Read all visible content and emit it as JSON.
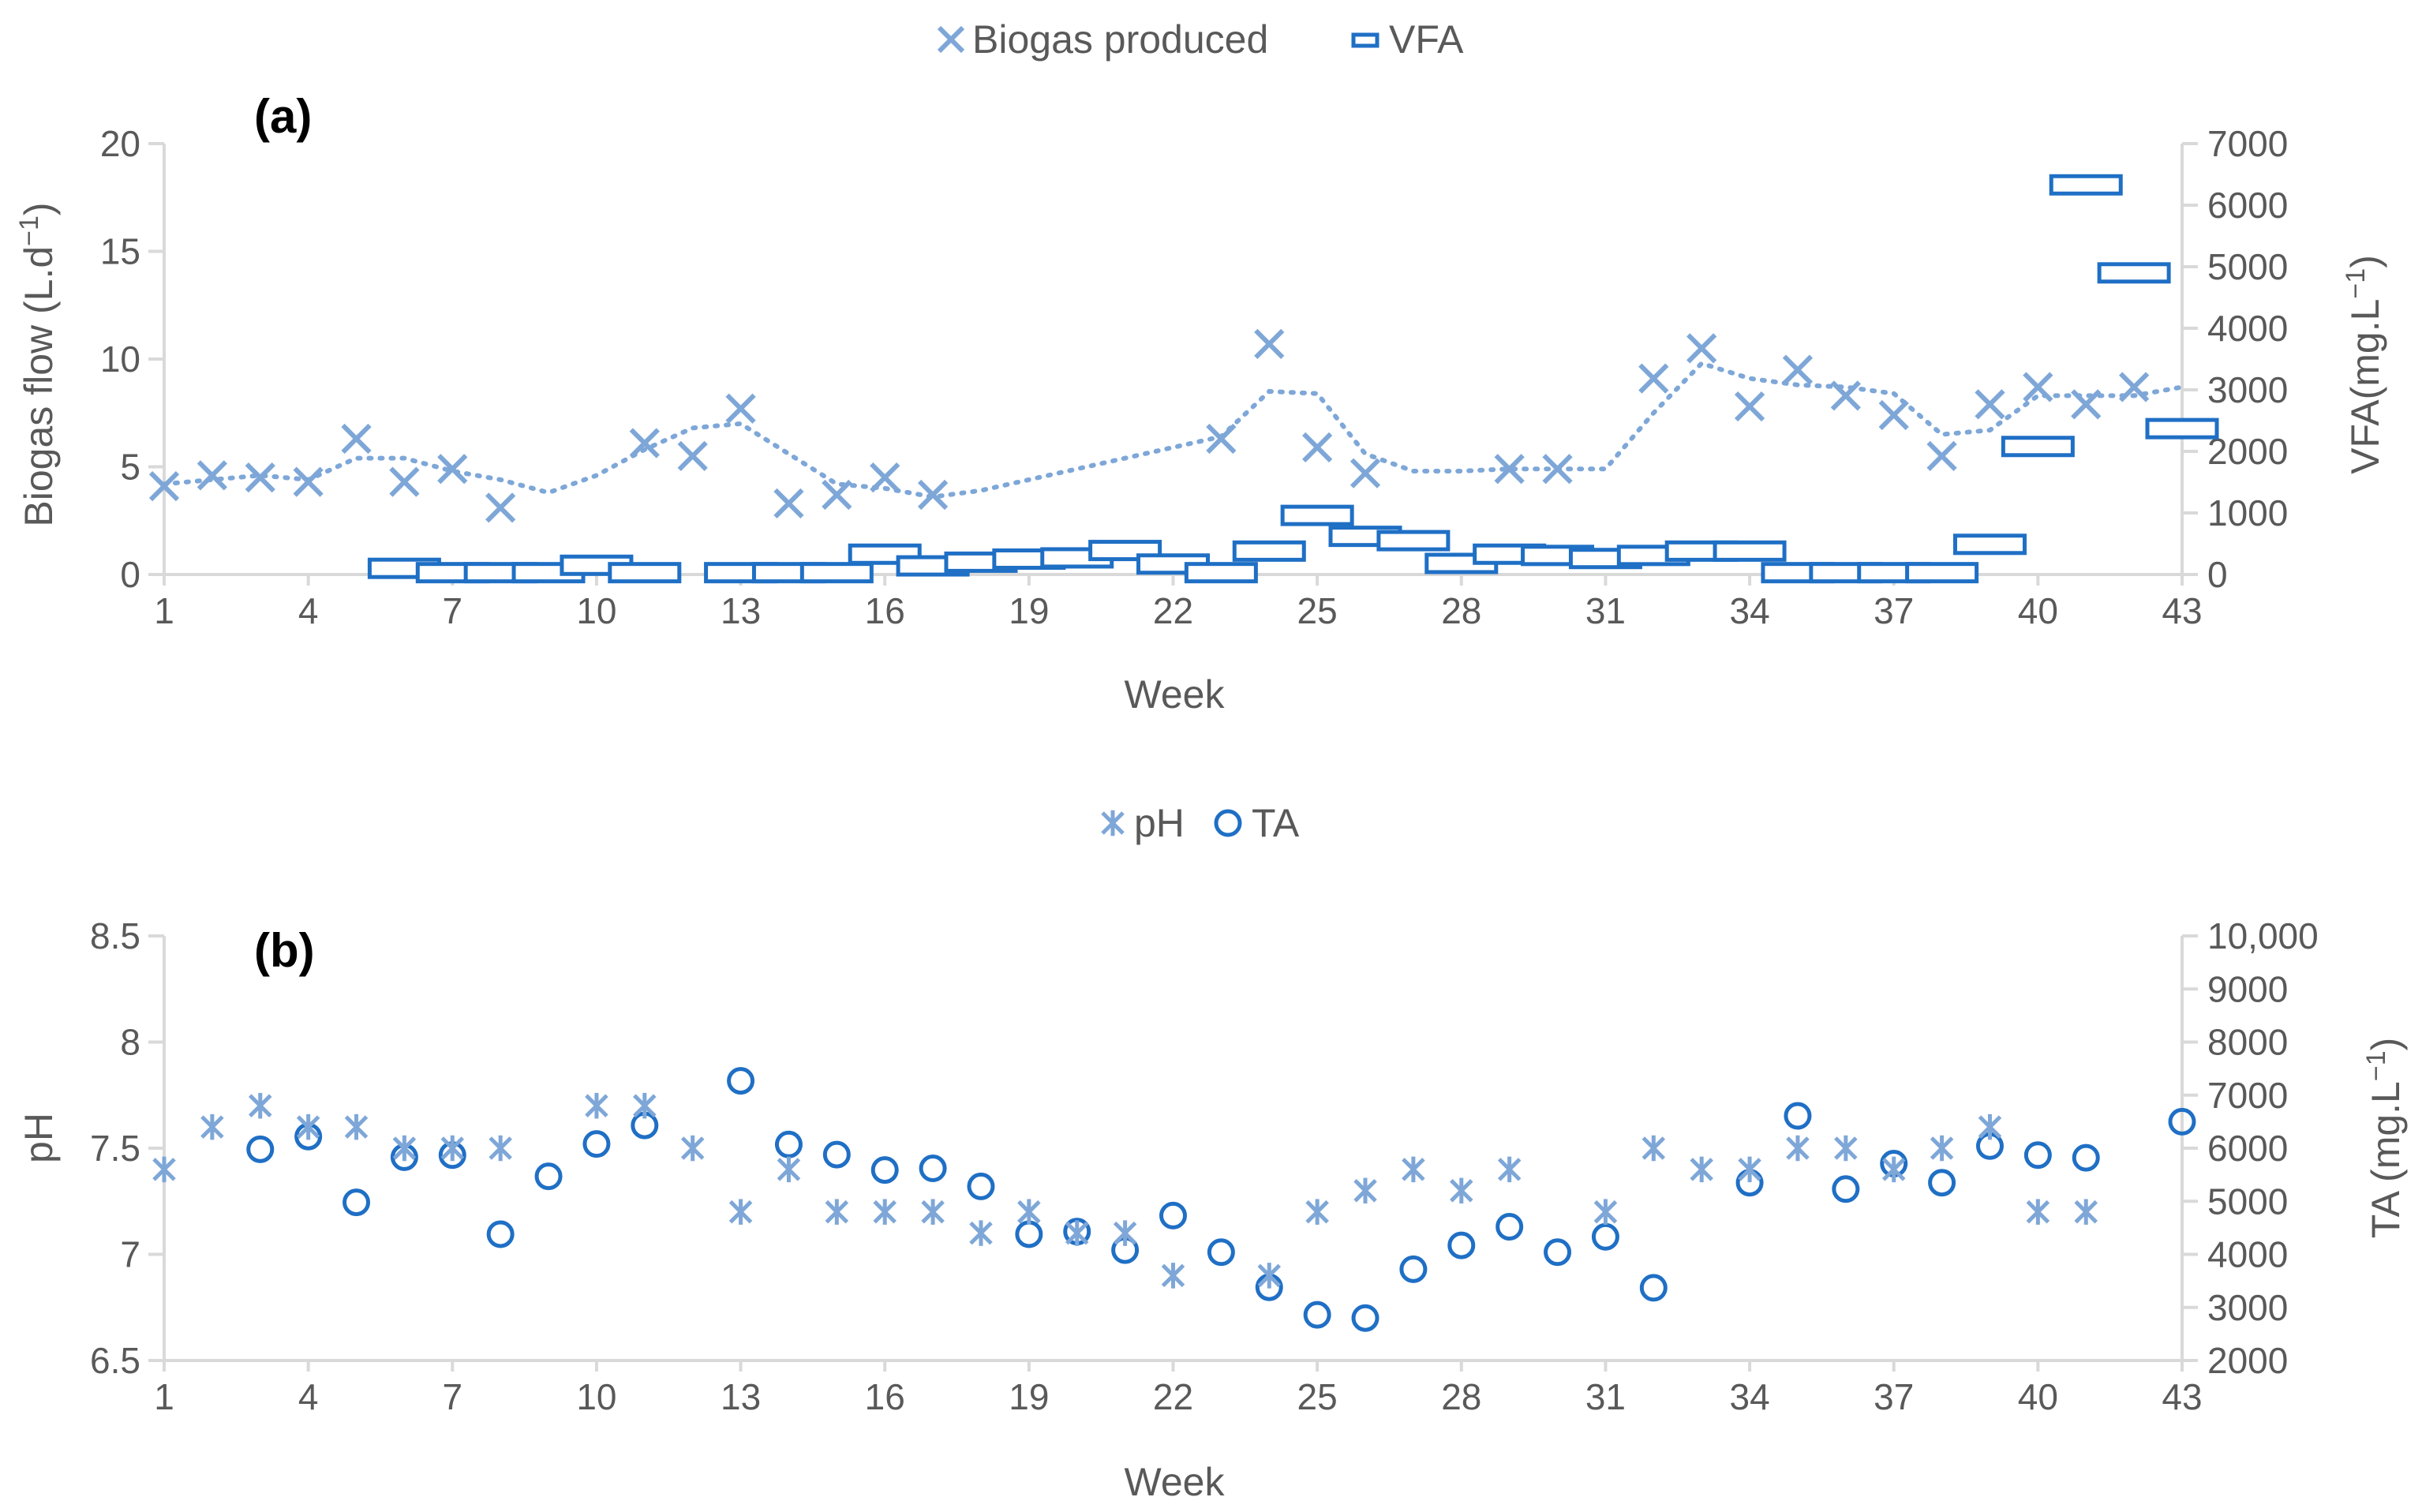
{
  "colors": {
    "marker": "#7EA7D8",
    "accent": "#1F6FC5",
    "axis": "#D9D9D9",
    "text": "#595959"
  },
  "chart_data": [
    {
      "type": "scatter",
      "panel_label": "(a)",
      "xlabel": "Week",
      "ylabel_left_main": "Biogas flow (L.d",
      "ylabel_left_sup": "−1",
      "ylabel_left_end": ")",
      "ylabel_right_main": "VFA(mg.L",
      "ylabel_right_sup": "−1",
      "ylabel_right_end": ")",
      "xlim": [
        1,
        43
      ],
      "ylim_left": [
        0,
        20
      ],
      "ylim_right": [
        0,
        7000
      ],
      "xticks": [
        1,
        4,
        7,
        10,
        13,
        16,
        19,
        22,
        25,
        28,
        31,
        34,
        37,
        40,
        43
      ],
      "yticks_left": [
        0,
        5,
        10,
        15,
        20
      ],
      "yticks_right": [
        0,
        1000,
        2000,
        3000,
        4000,
        5000,
        6000,
        7000
      ],
      "legend": [
        {
          "name": "Biogas produced",
          "icon": "x-marker-icon"
        },
        {
          "name": "VFA",
          "icon": "dash-marker-icon"
        }
      ],
      "series": [
        {
          "name": "Biogas produced",
          "axis": "left",
          "marker": "x",
          "x": [
            1,
            2,
            3,
            4,
            5,
            6,
            7,
            8,
            11,
            12,
            13,
            14,
            15,
            16,
            17,
            23,
            24,
            25,
            26,
            29,
            30,
            32,
            33,
            34,
            35,
            36,
            37,
            38,
            39,
            40,
            41,
            42
          ],
          "y": [
            4.1,
            4.6,
            4.5,
            4.3,
            6.3,
            4.3,
            4.9,
            3.1,
            6.1,
            5.5,
            7.7,
            3.3,
            3.7,
            4.5,
            3.7,
            6.3,
            10.7,
            5.9,
            4.7,
            4.9,
            4.9,
            9.1,
            10.5,
            7.8,
            9.5,
            8.3,
            7.4,
            5.5,
            7.9,
            8.7,
            7.9,
            8.7
          ],
          "trendline": {
            "style": "dotted",
            "x": [
              1,
              2,
              3,
              4,
              5,
              6,
              7,
              8,
              9,
              10,
              11,
              12,
              13,
              14,
              15,
              16,
              17,
              18,
              19,
              20,
              21,
              22,
              23,
              24,
              25,
              26,
              27,
              28,
              29,
              30,
              31,
              32,
              33,
              34,
              35,
              36,
              37,
              38,
              39,
              40,
              41,
              42,
              43
            ],
            "y": [
              4.2,
              4.4,
              4.6,
              4.4,
              5.4,
              5.4,
              4.8,
              4.4,
              3.8,
              4.6,
              5.8,
              6.8,
              7.0,
              5.6,
              4.2,
              4.0,
              3.6,
              3.9,
              4.4,
              4.9,
              5.4,
              5.9,
              6.4,
              8.5,
              8.4,
              5.6,
              4.8,
              4.8,
              4.9,
              4.9,
              4.9,
              7.5,
              9.8,
              9.1,
              8.8,
              8.7,
              8.4,
              6.5,
              6.7,
              8.3,
              8.3,
              8.3,
              8.7
            ]
          }
        },
        {
          "name": "VFA",
          "axis": "right",
          "marker": "dash",
          "x": [
            6,
            7,
            8,
            9,
            10,
            11,
            13,
            14,
            15,
            16,
            17,
            18,
            19,
            20,
            21,
            22,
            23,
            24,
            25,
            26,
            27,
            28,
            29,
            30,
            31,
            32,
            33,
            34,
            35,
            36,
            37,
            38,
            39,
            40,
            41,
            42,
            43
          ],
          "y": [
            100,
            30,
            30,
            30,
            150,
            30,
            30,
            30,
            30,
            330,
            140,
            200,
            250,
            270,
            390,
            170,
            30,
            380,
            960,
            620,
            550,
            180,
            330,
            310,
            260,
            310,
            380,
            380,
            30,
            30,
            30,
            30,
            490,
            2080,
            6330,
            4900,
            2370
          ]
        }
      ]
    },
    {
      "type": "scatter",
      "panel_label": "(b)",
      "xlabel": "Week",
      "ylabel_left_main": "pH",
      "ylabel_right_main": "TA (mg.L",
      "ylabel_right_sup": "−1",
      "ylabel_right_end": ")",
      "xlim": [
        1,
        43
      ],
      "ylim_left": [
        6.5,
        8.5
      ],
      "ylim_right": [
        2000,
        10000
      ],
      "xticks": [
        1,
        4,
        7,
        10,
        13,
        16,
        19,
        22,
        25,
        28,
        31,
        34,
        37,
        40,
        43
      ],
      "yticks_left": [
        6.5,
        7,
        7.5,
        8,
        8.5
      ],
      "yticks_left_labels": [
        "6.5",
        "7",
        "7.5",
        "8",
        "8.5"
      ],
      "yticks_right": [
        2000,
        3000,
        4000,
        5000,
        6000,
        7000,
        8000,
        9000,
        10000
      ],
      "yticks_right_labels": [
        "2000",
        "3000",
        "4000",
        "5000",
        "6000",
        "7000",
        "8000",
        "9000",
        "10,000"
      ],
      "legend": [
        {
          "name": "pH",
          "icon": "asterisk-marker-icon"
        },
        {
          "name": "TA",
          "icon": "circle-marker-icon"
        }
      ],
      "series": [
        {
          "name": "pH",
          "axis": "left",
          "marker": "asterisk",
          "x": [
            1,
            2,
            3,
            4,
            5,
            6,
            7,
            8,
            10,
            11,
            12,
            13,
            14,
            15,
            16,
            17,
            18,
            19,
            20,
            21,
            22,
            24,
            25,
            26,
            27,
            28,
            29,
            31,
            32,
            33,
            34,
            35,
            36,
            37,
            38,
            39,
            40,
            41
          ],
          "y": [
            7.4,
            7.6,
            7.7,
            7.6,
            7.6,
            7.5,
            7.5,
            7.5,
            7.7,
            7.7,
            7.5,
            7.2,
            7.4,
            7.2,
            7.2,
            7.2,
            7.1,
            7.2,
            7.1,
            7.1,
            6.9,
            6.9,
            7.2,
            7.3,
            7.4,
            7.3,
            7.4,
            7.2,
            7.5,
            7.4,
            7.4,
            7.5,
            7.5,
            7.4,
            7.5,
            7.6,
            7.2,
            7.2
          ]
        },
        {
          "name": "TA",
          "axis": "right",
          "marker": "circle",
          "x": [
            3,
            4,
            5,
            6,
            7,
            8,
            9,
            10,
            11,
            13,
            14,
            15,
            16,
            17,
            18,
            19,
            20,
            21,
            22,
            23,
            24,
            25,
            26,
            27,
            28,
            29,
            30,
            31,
            32,
            34,
            35,
            36,
            37,
            38,
            39,
            40,
            41,
            43
          ],
          "y": [
            5980,
            6220,
            4980,
            5830,
            5870,
            4380,
            5470,
            6080,
            6430,
            7270,
            6070,
            5880,
            5590,
            5620,
            5280,
            4380,
            4430,
            4080,
            4730,
            4040,
            3380,
            2860,
            2800,
            3720,
            4170,
            4520,
            4040,
            4330,
            3370,
            5350,
            6610,
            5230,
            5710,
            5350,
            6040,
            5870,
            5820,
            6500
          ]
        }
      ]
    }
  ]
}
